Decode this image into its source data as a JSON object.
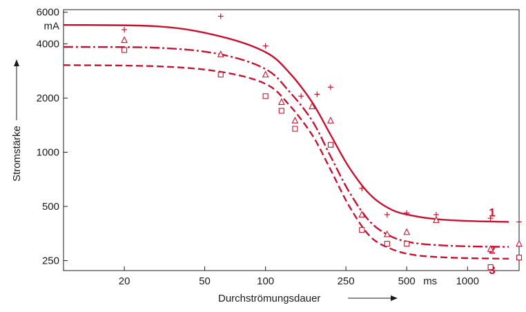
{
  "colors": {
    "curve": "#c8102e",
    "axis": "#1a1a1a",
    "marker": "#c8102e"
  },
  "chart_data": {
    "type": "line",
    "xscale": "log",
    "yscale": "log",
    "xlim": [
      10,
      1800
    ],
    "ylim": [
      220,
      6200
    ],
    "x_ticks": [
      {
        "value": 20,
        "label": "20"
      },
      {
        "value": 50,
        "label": "50"
      },
      {
        "value": 100,
        "label": "100"
      },
      {
        "value": 250,
        "label": "250"
      },
      {
        "value": 500,
        "label": "500"
      },
      {
        "value": 1000,
        "label": "1000"
      }
    ],
    "x_unit": "ms",
    "y_ticks": [
      {
        "value": 6000,
        "label": "6000"
      },
      {
        "value": 4000,
        "label": "4000"
      },
      {
        "value": 2000,
        "label": "2000"
      },
      {
        "value": 1000,
        "label": "1000"
      },
      {
        "value": 500,
        "label": "500"
      },
      {
        "value": 250,
        "label": "250"
      }
    ],
    "y_unit": "mA",
    "xlabel": "Durchströmungsdauer",
    "ylabel": "Stromstärke",
    "grid": false,
    "series": [
      {
        "name": "1",
        "line": "solid",
        "marker": "plus",
        "curve": [
          [
            10,
            5100
          ],
          [
            30,
            5000
          ],
          [
            60,
            4400
          ],
          [
            100,
            3600
          ],
          [
            130,
            2800
          ],
          [
            170,
            1900
          ],
          [
            210,
            1250
          ],
          [
            260,
            820
          ],
          [
            330,
            580
          ],
          [
            420,
            480
          ],
          [
            530,
            445
          ],
          [
            700,
            425
          ],
          [
            1000,
            415
          ],
          [
            1600,
            410
          ]
        ],
        "points": [
          [
            20,
            4800
          ],
          [
            60,
            5700
          ],
          [
            100,
            3900
          ],
          [
            150,
            2050
          ],
          [
            180,
            2100
          ],
          [
            210,
            2300
          ],
          [
            300,
            630
          ],
          [
            400,
            450
          ],
          [
            500,
            460
          ],
          [
            700,
            450
          ],
          [
            1300,
            430
          ],
          [
            1800,
            410
          ]
        ]
      },
      {
        "name": "2",
        "line": "dashdot",
        "marker": "triangle",
        "curve": [
          [
            10,
            3850
          ],
          [
            30,
            3800
          ],
          [
            60,
            3500
          ],
          [
            100,
            2900
          ],
          [
            130,
            2200
          ],
          [
            170,
            1500
          ],
          [
            210,
            950
          ],
          [
            260,
            600
          ],
          [
            330,
            410
          ],
          [
            420,
            340
          ],
          [
            530,
            315
          ],
          [
            700,
            305
          ],
          [
            1000,
            300
          ],
          [
            1600,
            298
          ]
        ],
        "points": [
          [
            20,
            4200
          ],
          [
            60,
            3500
          ],
          [
            100,
            2700
          ],
          [
            120,
            1900
          ],
          [
            140,
            1500
          ],
          [
            170,
            1800
          ],
          [
            210,
            1500
          ],
          [
            300,
            450
          ],
          [
            400,
            350
          ],
          [
            500,
            360
          ],
          [
            700,
            420
          ],
          [
            1300,
            290
          ],
          [
            1800,
            310
          ]
        ]
      },
      {
        "name": "3",
        "line": "dashed",
        "marker": "square",
        "curve": [
          [
            10,
            3050
          ],
          [
            30,
            3000
          ],
          [
            60,
            2800
          ],
          [
            100,
            2400
          ],
          [
            130,
            1850
          ],
          [
            170,
            1250
          ],
          [
            210,
            800
          ],
          [
            260,
            500
          ],
          [
            330,
            340
          ],
          [
            420,
            290
          ],
          [
            530,
            270
          ],
          [
            700,
            262
          ],
          [
            1000,
            258
          ],
          [
            1600,
            256
          ]
        ],
        "points": [
          [
            20,
            3700
          ],
          [
            60,
            2700
          ],
          [
            100,
            2050
          ],
          [
            120,
            1700
          ],
          [
            140,
            1350
          ],
          [
            210,
            1100
          ],
          [
            300,
            370
          ],
          [
            400,
            310
          ],
          [
            500,
            310
          ],
          [
            1300,
            230
          ],
          [
            1800,
            260
          ]
        ]
      }
    ]
  }
}
